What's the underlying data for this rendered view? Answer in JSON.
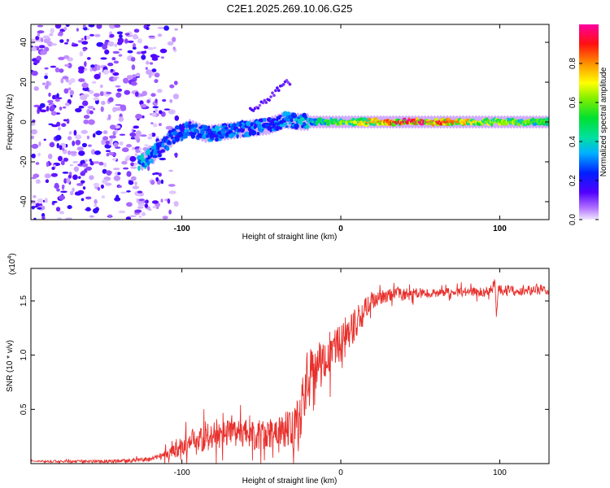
{
  "figure": {
    "title": "C2E1.2025.269.10.06.G25"
  },
  "chart_data": [
    {
      "type": "heatmap",
      "title": "C2E1.2025.269.10.06.G25",
      "xlabel": "Height of straight line (km)",
      "ylabel": "Frequency (Hz)",
      "xlim": [
        -195,
        131
      ],
      "ylim": [
        -49,
        49
      ],
      "xticks": [
        -100,
        0,
        100
      ],
      "xtick_labels": [
        "-100",
        "0",
        "100"
      ],
      "yticks": [
        -40,
        -20,
        0,
        20,
        40
      ],
      "ytick_labels": [
        "-40",
        "-20",
        "0",
        "20",
        "40"
      ],
      "colorbar": {
        "label": "Normalized spectral amplitude",
        "range": [
          0,
          1
        ],
        "ticks": [
          0.0,
          0.2,
          0.4,
          0.6,
          0.8
        ],
        "tick_labels": [
          "0.0",
          "0.2",
          "0.4",
          "0.6",
          "0.8"
        ]
      },
      "noise_region_x": [
        -195,
        -115
      ],
      "ridge": [
        {
          "x": -125,
          "f": -20,
          "a": 0.35
        },
        {
          "x": -115,
          "f": -14,
          "a": 0.3
        },
        {
          "x": -105,
          "f": -7,
          "a": 0.28
        },
        {
          "x": -95,
          "f": -3,
          "a": 0.3
        },
        {
          "x": -85,
          "f": -6,
          "a": 0.3
        },
        {
          "x": -75,
          "f": -5,
          "a": 0.32
        },
        {
          "x": -65,
          "f": -4,
          "a": 0.32
        },
        {
          "x": -55,
          "f": -3,
          "a": 0.3
        },
        {
          "x": -45,
          "f": -2,
          "a": 0.3
        },
        {
          "x": -35,
          "f": 1,
          "a": 0.32
        },
        {
          "x": -25,
          "f": 0,
          "a": 0.35
        },
        {
          "x": -15,
          "f": 0,
          "a": 0.45
        },
        {
          "x": 0,
          "f": 0,
          "a": 0.6
        },
        {
          "x": 20,
          "f": 0,
          "a": 0.75
        },
        {
          "x": 40,
          "f": 0,
          "a": 0.9
        },
        {
          "x": 60,
          "f": 0,
          "a": 0.92
        },
        {
          "x": 80,
          "f": 0,
          "a": 0.7
        },
        {
          "x": 100,
          "f": 0,
          "a": 0.6
        },
        {
          "x": 130,
          "f": 0,
          "a": 0.55
        }
      ],
      "branch": [
        {
          "x": -55,
          "f": 6
        },
        {
          "x": -45,
          "f": 12
        },
        {
          "x": -35,
          "f": 20
        }
      ]
    },
    {
      "type": "line",
      "xlabel": "Height of straight line (km)",
      "ylabel": "SNR (10 * v/v)",
      "y_scale_label": "(x10",
      "y_scale_exp": "4",
      "xlim": [
        -195,
        131
      ],
      "ylim": [
        0,
        1.8
      ],
      "xticks": [
        -100,
        0,
        100
      ],
      "xtick_labels": [
        "-100",
        "0",
        "100"
      ],
      "yticks": [
        0.5,
        1.0,
        1.5
      ],
      "ytick_labels": [
        "0.5",
        "1.0",
        "1.5"
      ],
      "series": [
        {
          "name": "SNR",
          "color": "#e8302c",
          "x": [
            -195,
            -170,
            -150,
            -130,
            -120,
            -112,
            -105,
            -100,
            -95,
            -90,
            -85,
            -80,
            -75,
            -70,
            -65,
            -60,
            -55,
            -50,
            -45,
            -40,
            -35,
            -30,
            -25,
            -22,
            -20,
            -18,
            -15,
            -12,
            -10,
            -5,
            0,
            5,
            10,
            15,
            20,
            25,
            30,
            35,
            40,
            50,
            60,
            70,
            80,
            90,
            95,
            97,
            98,
            99,
            100,
            105,
            110,
            120,
            131
          ],
          "y": [
            0.02,
            0.02,
            0.02,
            0.03,
            0.04,
            0.08,
            0.12,
            0.16,
            0.2,
            0.22,
            0.25,
            0.28,
            0.26,
            0.27,
            0.25,
            0.27,
            0.25,
            0.27,
            0.28,
            0.3,
            0.32,
            0.35,
            0.45,
            0.7,
            0.8,
            0.85,
            0.9,
            0.95,
            1.0,
            1.05,
            1.1,
            1.2,
            1.3,
            1.42,
            1.5,
            1.54,
            1.56,
            1.56,
            1.56,
            1.57,
            1.57,
            1.58,
            1.58,
            1.58,
            1.6,
            1.7,
            1.35,
            1.62,
            1.6,
            1.6,
            1.59,
            1.6,
            1.6
          ]
        }
      ],
      "noise_amplitude": [
        {
          "x": -195,
          "amp": 0.008
        },
        {
          "x": -115,
          "amp": 0.02
        },
        {
          "x": -90,
          "amp": 0.14
        },
        {
          "x": -40,
          "amp": 0.14
        },
        {
          "x": -30,
          "amp": 0.22
        },
        {
          "x": -20,
          "amp": 0.35
        },
        {
          "x": -10,
          "amp": 0.2
        },
        {
          "x": 10,
          "amp": 0.15
        },
        {
          "x": 25,
          "amp": 0.07
        },
        {
          "x": 60,
          "amp": 0.04
        },
        {
          "x": 131,
          "amp": 0.05
        }
      ]
    }
  ]
}
